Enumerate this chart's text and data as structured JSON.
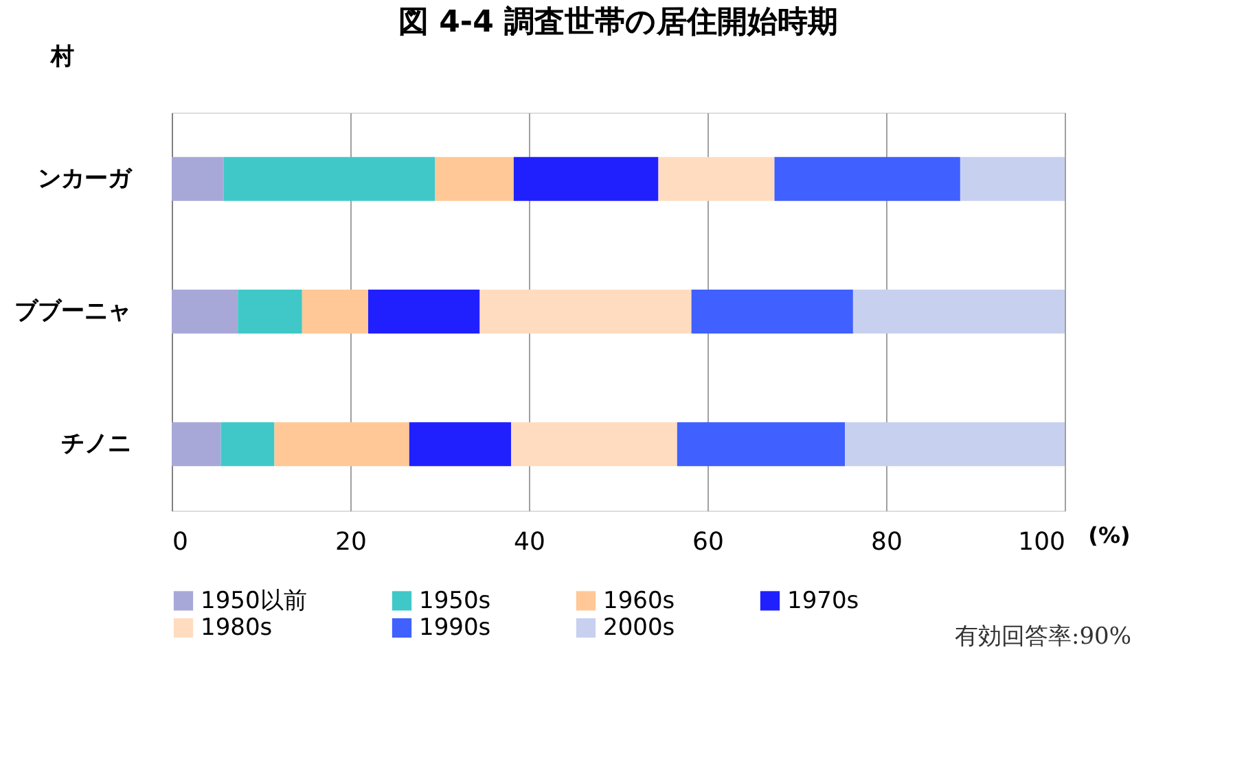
{
  "chart_data": {
    "type": "bar",
    "orientation": "horizontal",
    "stacked": true,
    "title": "図 4-4 調査世帯の居住開始時期",
    "ylabel": "村",
    "xlabel": "(%)",
    "categories": [
      "ンカーガ",
      "ブブーニャ",
      "チノニ"
    ],
    "series": [
      {
        "name": "1950以前",
        "color": "#a8a8d8",
        "values": [
          5.8,
          7.4,
          5.5
        ]
      },
      {
        "name": "1950s",
        "color": "#40c8c8",
        "values": [
          23.7,
          7.2,
          6.0
        ]
      },
      {
        "name": "1960s",
        "color": "#ffc896",
        "values": [
          8.8,
          7.4,
          15.1
        ]
      },
      {
        "name": "1970s",
        "color": "#2020ff",
        "values": [
          16.2,
          12.5,
          11.4
        ]
      },
      {
        "name": "1980s",
        "color": "#ffdcc0",
        "values": [
          13.0,
          23.7,
          18.6
        ]
      },
      {
        "name": "1990s",
        "color": "#4060ff",
        "values": [
          20.8,
          18.1,
          18.8
        ]
      },
      {
        "name": "2000s",
        "color": "#c8d0f0",
        "values": [
          11.7,
          23.7,
          24.6
        ]
      }
    ],
    "xlim": [
      0,
      100
    ],
    "xticks": [
      0,
      20,
      40,
      60,
      80,
      100
    ],
    "grid": "x",
    "legend": "bottom",
    "annotations": [
      "有効回答率:90%"
    ]
  }
}
